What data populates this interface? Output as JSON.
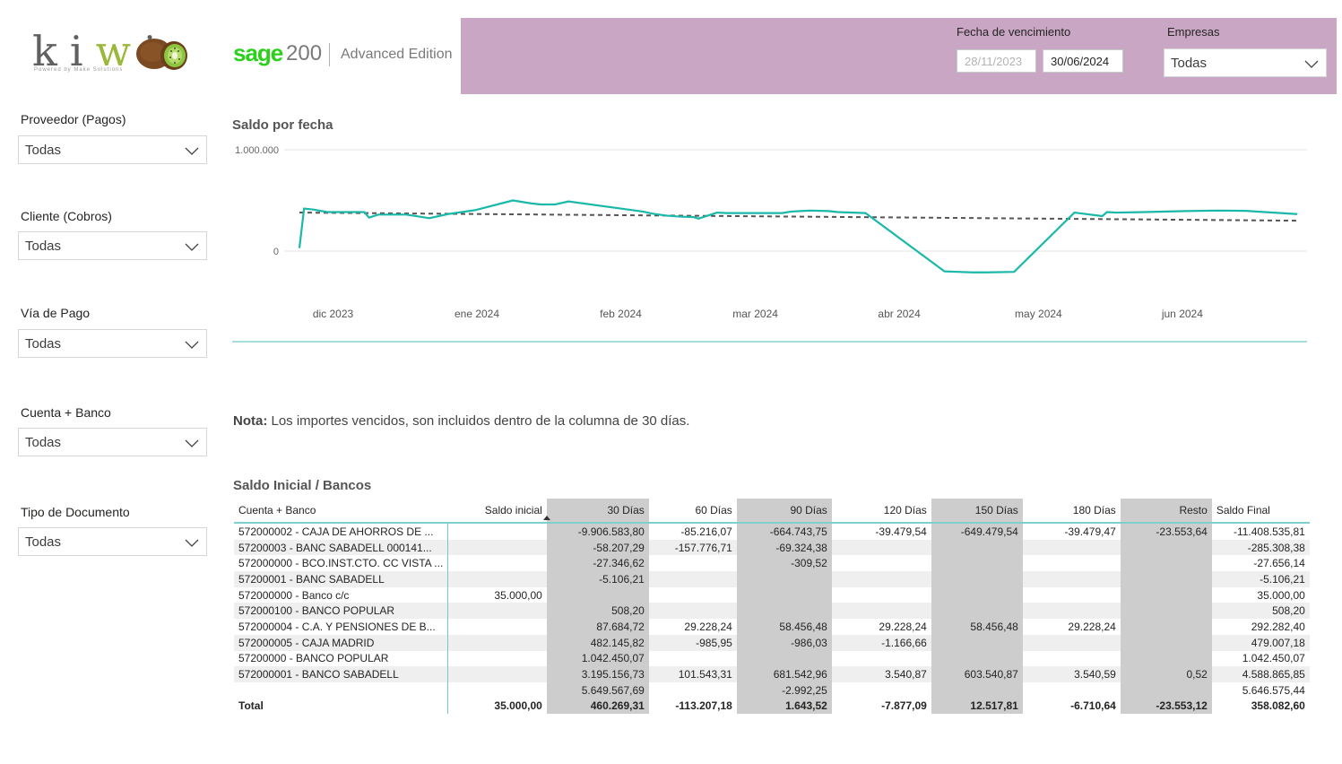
{
  "branding": {
    "kiwi_letters": [
      "k",
      "i",
      "w",
      "i"
    ],
    "kiwi_tagline": "Powered by Make Solutions",
    "sage_brand": "sage",
    "sage_number": "200",
    "sage_edition": "Advanced Edition"
  },
  "header": {
    "fecha_label": "Fecha de vencimiento",
    "fecha_desde": "28/11/2023",
    "fecha_hasta": "30/06/2024",
    "empresas_label": "Empresas",
    "empresas_value": "Todas"
  },
  "slicers": [
    {
      "label": "Proveedor (Pagos)",
      "value": "Todas"
    },
    {
      "label": "Cliente (Cobros)",
      "value": "Todas"
    },
    {
      "label": "Vía de Pago",
      "value": "Todas"
    },
    {
      "label": "Cuenta + Banco",
      "value": "Todas"
    },
    {
      "label": "Tipo de Documento",
      "value": "Todas"
    }
  ],
  "colors": {
    "band": "#c9a6c4",
    "line": "#1ab8a8",
    "trend": "#555555",
    "accent": "#6fcac4"
  },
  "chart_data": {
    "type": "line",
    "title": "Saldo por fecha",
    "y_ticks": [
      "1.000.000",
      "0"
    ],
    "y_tick_values": [
      1000000,
      0
    ],
    "x_tick_labels": [
      "dic 2023",
      "ene 2024",
      "feb 2024",
      "mar 2024",
      "abr 2024",
      "may 2024",
      "jun 2024"
    ],
    "x_tick_dates": [
      "2023-12-01",
      "2024-01-01",
      "2024-02-01",
      "2024-03-01",
      "2024-04-01",
      "2024-05-01",
      "2024-06-01"
    ],
    "x_range": [
      "2023-11-28",
      "2024-06-30"
    ],
    "ylim": [
      -250000,
      1000000
    ],
    "series": [
      {
        "x": [
          "2023-11-28",
          "2023-11-29",
          "2023-12-01",
          "2023-12-04",
          "2023-12-08",
          "2023-12-12",
          "2023-12-13",
          "2023-12-15",
          "2023-12-21",
          "2023-12-26",
          "2023-12-30",
          "2024-01-05",
          "2024-01-13",
          "2024-01-17",
          "2024-01-19",
          "2024-01-22",
          "2024-01-25",
          "2024-02-10",
          "2024-02-12",
          "2024-02-15",
          "2024-02-18",
          "2024-02-21",
          "2024-02-22",
          "2024-02-26",
          "2024-02-28",
          "2024-03-11",
          "2024-03-13",
          "2024-03-17",
          "2024-03-21",
          "2024-03-23",
          "2024-03-29",
          "2024-04-15",
          "2024-04-18",
          "2024-04-21",
          "2024-04-24",
          "2024-04-30",
          "2024-05-13",
          "2024-05-19",
          "2024-05-20",
          "2024-05-22",
          "2024-05-28",
          "2024-06-06",
          "2024-06-13",
          "2024-06-19",
          "2024-06-23",
          "2024-06-30"
        ],
        "y": [
          30000,
          420000,
          410000,
          385000,
          385000,
          385000,
          330000,
          360000,
          360000,
          325000,
          365000,
          405000,
          500000,
          470000,
          460000,
          460000,
          490000,
          390000,
          370000,
          350000,
          340000,
          335000,
          320000,
          380000,
          375000,
          375000,
          390000,
          400000,
          395000,
          385000,
          375000,
          -200000,
          -205000,
          -210000,
          -210000,
          -205000,
          380000,
          345000,
          385000,
          380000,
          385000,
          395000,
          400000,
          397000,
          385000,
          365000
        ]
      },
      {
        "x": [
          "2023-11-28",
          "2024-06-30"
        ],
        "y": [
          380000,
          300000
        ]
      }
    ]
  },
  "note": {
    "label": "Nota:",
    "text": "Los importes vencidos, son incluidos dentro de la columna de 30 días."
  },
  "table": {
    "title": "Saldo Inicial / Bancos",
    "columns": [
      "Cuenta + Banco",
      "Saldo inicial",
      "30 Días",
      "60 Días",
      "90 Días",
      "120 Días",
      "150 Días",
      "180 Días",
      "Resto",
      "Saldo Final"
    ],
    "rows": [
      [
        "572000002 - CAJA DE AHORROS DE ...",
        "",
        "-9.906.583,80",
        "-85.216,07",
        "-664.743,75",
        "-39.479,54",
        "-649.479,54",
        "-39.479,47",
        "-23.553,64",
        "-11.408.535,81"
      ],
      [
        "57200003 - BANC SABADELL 000141...",
        "",
        "-58.207,29",
        "-157.776,71",
        "-69.324,38",
        "",
        "",
        "",
        "",
        "-285.308,38"
      ],
      [
        "572000000 - BCO.INST.CTO. CC VISTA ...",
        "",
        "-27.346,62",
        "",
        "-309,52",
        "",
        "",
        "",
        "",
        "-27.656,14"
      ],
      [
        "57200001 - BANC SABADELL",
        "",
        "-5.106,21",
        "",
        "",
        "",
        "",
        "",
        "",
        "-5.106,21"
      ],
      [
        "572000000 - Banco c/c",
        "35.000,00",
        "",
        "",
        "",
        "",
        "",
        "",
        "",
        "35.000,00"
      ],
      [
        "572000100 - BANCO POPULAR",
        "",
        "508,20",
        "",
        "",
        "",
        "",
        "",
        "",
        "508,20"
      ],
      [
        "572000004 - C.A. Y PENSIONES DE B...",
        "",
        "87.684,72",
        "29.228,24",
        "58.456,48",
        "29.228,24",
        "58.456,48",
        "29.228,24",
        "",
        "292.282,40"
      ],
      [
        "572000005 - CAJA MADRID",
        "",
        "482.145,82",
        "-985,95",
        "-986,03",
        "-1.166,66",
        "",
        "",
        "",
        "479.007,18"
      ],
      [
        "57200000 - BANCO POPULAR",
        "",
        "1.042.450,07",
        "",
        "",
        "",
        "",
        "",
        "",
        "1.042.450,07"
      ],
      [
        "572000001 - BANCO SABADELL",
        "",
        "3.195.156,73",
        "101.543,31",
        "681.542,96",
        "3.540,87",
        "603.540,87",
        "3.540,59",
        "0,52",
        "4.588.865,85"
      ],
      [
        "",
        "",
        "5.649.567,69",
        "",
        "-2.992,25",
        "",
        "",
        "",
        "",
        "5.646.575,44"
      ]
    ],
    "total": [
      "Total",
      "35.000,00",
      "460.269,31",
      "-113.207,18",
      "1.643,52",
      "-7.877,09",
      "12.517,81",
      "-6.710,64",
      "-23.553,12",
      "358.082,60"
    ]
  }
}
